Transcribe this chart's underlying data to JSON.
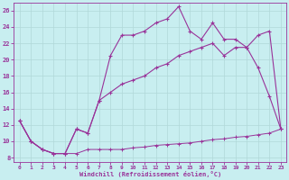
{
  "xlabel": "Windchill (Refroidissement éolien,°C)",
  "bg_color": "#c8eef0",
  "grid_color": "#b0d8d8",
  "line_color": "#993399",
  "xlim": [
    -0.5,
    23.5
  ],
  "ylim": [
    7.5,
    27
  ],
  "xticks": [
    0,
    1,
    2,
    3,
    4,
    5,
    6,
    7,
    8,
    9,
    10,
    11,
    12,
    13,
    14,
    15,
    16,
    17,
    18,
    19,
    20,
    21,
    22,
    23
  ],
  "yticks": [
    8,
    10,
    12,
    14,
    16,
    18,
    20,
    22,
    24,
    26
  ],
  "line1_x": [
    0,
    1,
    2,
    3,
    4,
    5,
    6,
    7,
    8,
    9,
    10,
    11,
    12,
    13,
    14,
    15,
    16,
    17,
    18,
    19,
    20,
    21,
    22,
    23
  ],
  "line1_y": [
    12.5,
    10.0,
    9.0,
    8.5,
    8.5,
    8.5,
    9.0,
    9.0,
    9.0,
    9.0,
    9.2,
    9.3,
    9.5,
    9.6,
    9.7,
    9.8,
    10.0,
    10.2,
    10.3,
    10.5,
    10.6,
    10.8,
    11.0,
    11.5
  ],
  "line2_x": [
    0,
    1,
    2,
    3,
    4,
    5,
    6,
    7,
    8,
    9,
    10,
    11,
    12,
    13,
    14,
    15,
    16,
    17,
    18,
    19,
    20,
    21,
    22,
    23
  ],
  "line2_y": [
    12.5,
    10.0,
    9.0,
    8.5,
    8.5,
    11.5,
    11.0,
    15.0,
    20.5,
    23.0,
    23.0,
    23.5,
    24.5,
    25.0,
    26.5,
    23.5,
    22.5,
    24.5,
    22.5,
    22.5,
    21.5,
    23.0,
    23.5,
    11.5
  ],
  "line3_x": [
    0,
    1,
    2,
    3,
    4,
    5,
    6,
    7,
    8,
    9,
    10,
    11,
    12,
    13,
    14,
    15,
    16,
    17,
    18,
    19,
    20,
    21,
    22,
    23
  ],
  "line3_y": [
    12.5,
    10.0,
    9.0,
    8.5,
    8.5,
    11.5,
    11.0,
    15.0,
    16.0,
    17.0,
    17.5,
    18.0,
    19.0,
    19.5,
    20.5,
    21.0,
    21.5,
    22.0,
    20.5,
    21.5,
    21.5,
    19.0,
    15.5,
    11.5
  ]
}
